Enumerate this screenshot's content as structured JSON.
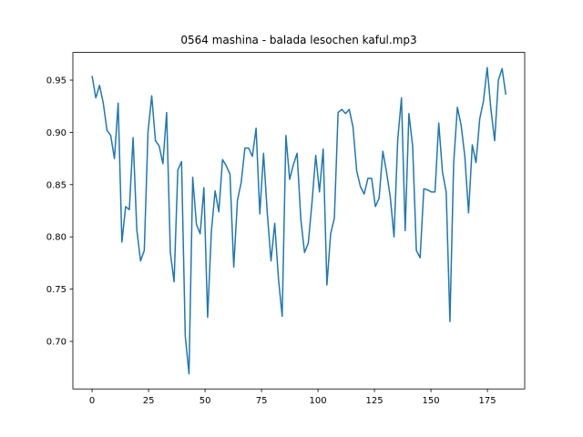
{
  "chart_data": {
    "type": "line",
    "title": "0564 mashina - balada lesochen kaful.mp3",
    "x": [
      0,
      1.65,
      3.3,
      4.95,
      6.6,
      8.25,
      9.9,
      11.55,
      13.2,
      14.85,
      16.5,
      18.15,
      19.8,
      21.45,
      23.1,
      24.75,
      26.4,
      28.05,
      29.7,
      31.35,
      33,
      34.65,
      36.3,
      37.95,
      39.6,
      41.25,
      42.9,
      44.55,
      46.2,
      47.85,
      49.5,
      51.15,
      52.8,
      54.45,
      56.1,
      57.75,
      59.4,
      61.05,
      62.7,
      64.35,
      66,
      67.65,
      69.3,
      70.95,
      72.6,
      74.25,
      75.9,
      77.55,
      79.2,
      80.85,
      82.5,
      84.15,
      85.8,
      87.45,
      89.1,
      90.75,
      92.4,
      94.05,
      95.7,
      97.35,
      99,
      100.65,
      102.3,
      103.95,
      105.6,
      107.25,
      108.9,
      110.55,
      112.2,
      113.85,
      115.5,
      117.15,
      118.8,
      120.45,
      122.1,
      123.75,
      125.4,
      127.05,
      128.7,
      130.35,
      132,
      133.65,
      135.3,
      136.95,
      138.6,
      140.25,
      141.9,
      143.55,
      145.2,
      146.85,
      148.5,
      150.15,
      151.8,
      153.45,
      155.1,
      156.75,
      158.4,
      160.05,
      161.7,
      163.35,
      165,
      166.65,
      168.3,
      169.95,
      171.6,
      173.25,
      174.9,
      176.55,
      178.2,
      179.85,
      181.5,
      183.15
    ],
    "series": [
      {
        "color": "#1f77b4",
        "values": [
          0.954,
          0.933,
          0.945,
          0.928,
          0.902,
          0.897,
          0.875,
          0.928,
          0.795,
          0.829,
          0.826,
          0.895,
          0.807,
          0.777,
          0.787,
          0.9,
          0.935,
          0.892,
          0.887,
          0.87,
          0.919,
          0.785,
          0.757,
          0.864,
          0.872,
          0.705,
          0.669,
          0.857,
          0.812,
          0.803,
          0.847,
          0.723,
          0.805,
          0.844,
          0.824,
          0.874,
          0.868,
          0.86,
          0.771,
          0.835,
          0.852,
          0.885,
          0.885,
          0.877,
          0.904,
          0.822,
          0.88,
          0.823,
          0.777,
          0.813,
          0.76,
          0.724,
          0.897,
          0.855,
          0.869,
          0.88,
          0.817,
          0.785,
          0.794,
          0.833,
          0.878,
          0.843,
          0.884,
          0.754,
          0.803,
          0.818,
          0.919,
          0.922,
          0.918,
          0.922,
          0.905,
          0.863,
          0.848,
          0.841,
          0.856,
          0.856,
          0.829,
          0.837,
          0.882,
          0.862,
          0.838,
          0.8,
          0.893,
          0.933,
          0.806,
          0.918,
          0.887,
          0.787,
          0.78,
          0.846,
          0.845,
          0.843,
          0.843,
          0.909,
          0.862,
          0.843,
          0.719,
          0.87,
          0.924,
          0.907,
          0.877,
          0.823,
          0.888,
          0.871,
          0.913,
          0.93,
          0.962,
          0.922,
          0.892,
          0.95,
          0.961,
          0.936
        ]
      }
    ],
    "xlim": [
      -8.5,
      191.5
    ],
    "xticks": [
      0,
      25,
      50,
      75,
      100,
      125,
      150,
      175
    ],
    "ylim": [
      0.6545,
      0.9765
    ],
    "yticks": [
      {
        "value": 0.7,
        "label": "0.70"
      },
      {
        "value": 0.75,
        "label": "0.75"
      },
      {
        "value": 0.8,
        "label": "0.80"
      },
      {
        "value": 0.85,
        "label": "0.85"
      },
      {
        "value": 0.9,
        "label": "0.90"
      },
      {
        "value": 0.95,
        "label": "0.95"
      }
    ],
    "grid": false
  }
}
